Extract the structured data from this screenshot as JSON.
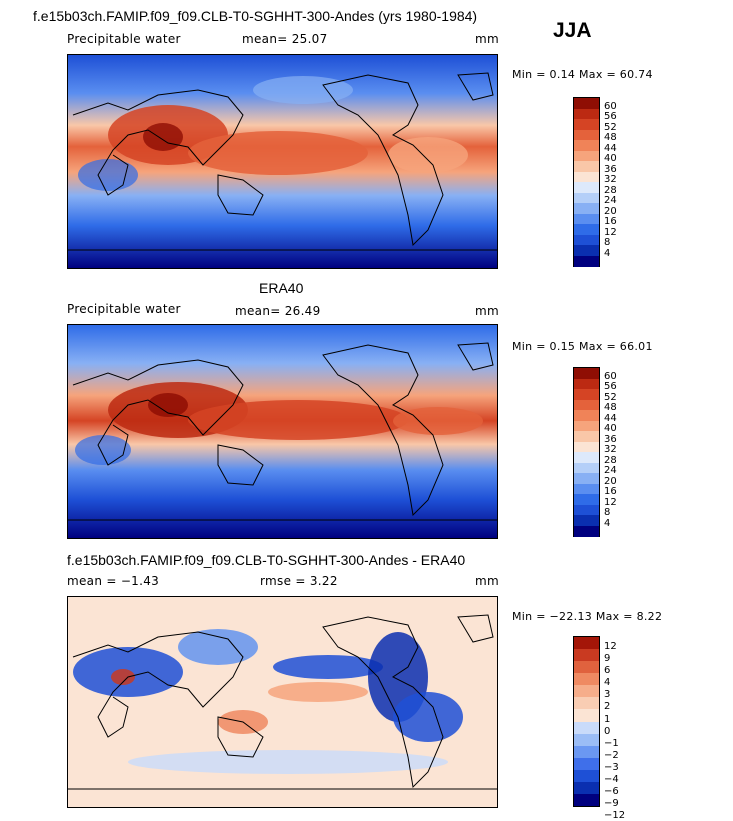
{
  "header": {
    "main_title": "f.e15b03ch.FAMIP.f09_f09.CLB-T0-SGHHT-300-Andes (yrs 1980-1984)",
    "season": "JJA"
  },
  "colors": {
    "pw_scale": [
      "#00007f",
      "#0a2fb0",
      "#1e50d6",
      "#2f6ce8",
      "#5a8ef0",
      "#88b0f4",
      "#b4cff8",
      "#dde9fb",
      "#fbe4d4",
      "#f9c7a8",
      "#f6a47c",
      "#f08358",
      "#e4623b",
      "#d54424",
      "#bc2a12",
      "#8f0e04"
    ],
    "diff_scale": [
      "#00007f",
      "#0a2fb0",
      "#1e50d6",
      "#3f6fea",
      "#6b98f2",
      "#9bbdf6",
      "#c9dbfa",
      "#fbe4d4",
      "#f9cdb3",
      "#f6ad8a",
      "#ef8a62",
      "#e0623e",
      "#c93a21",
      "#a41608"
    ],
    "land_line": "#000000"
  },
  "panels": [
    {
      "id": "model",
      "section_title": "",
      "field": "Precipitable water",
      "mean_text": "mean=  25.07",
      "rmse_text": "",
      "units": "mm",
      "min_max": "Min =    0.14 Max =  60.74"
    },
    {
      "id": "obs",
      "section_title": "ERA40",
      "field": "Precipitable water",
      "mean_text": "mean=  26.49",
      "rmse_text": "",
      "units": "mm",
      "min_max": "Min =    0.15 Max =  66.01"
    },
    {
      "id": "diff",
      "section_title": "f.e15b03ch.FAMIP.f09_f09.CLB-T0-SGHHT-300-Andes - ERA40",
      "field": "",
      "mean_text": "mean =  −1.43",
      "rmse_text": "rmse =    3.22",
      "units": "mm",
      "min_max": "Min = −22.13 Max =   8.22"
    }
  ],
  "chart_data": [
    {
      "type": "heatmap",
      "title": "Precipitable water",
      "mean": 25.07,
      "units": "mm",
      "min": 0.14,
      "max": 60.74,
      "colorbar_levels": [
        "60",
        "56",
        "52",
        "48",
        "44",
        "40",
        "36",
        "32",
        "28",
        "24",
        "20",
        "16",
        "12",
        "8",
        "4"
      ]
    },
    {
      "type": "heatmap",
      "title": "ERA40",
      "mean": 26.49,
      "units": "mm",
      "min": 0.15,
      "max": 66.01,
      "colorbar_levels": [
        "60",
        "56",
        "52",
        "48",
        "44",
        "40",
        "36",
        "32",
        "28",
        "24",
        "20",
        "16",
        "12",
        "8",
        "4"
      ]
    },
    {
      "type": "heatmap",
      "title": "f.e15b03ch.FAMIP.f09_f09.CLB-T0-SGHHT-300-Andes - ERA40",
      "mean": -1.43,
      "rmse": 3.22,
      "units": "mm",
      "min": -22.13,
      "max": 8.22,
      "colorbar_levels": [
        "12",
        "9",
        "6",
        "4",
        "3",
        "2",
        "1",
        "0",
        "−1",
        "−2",
        "−3",
        "−4",
        "−6",
        "−9",
        "−12"
      ]
    }
  ]
}
